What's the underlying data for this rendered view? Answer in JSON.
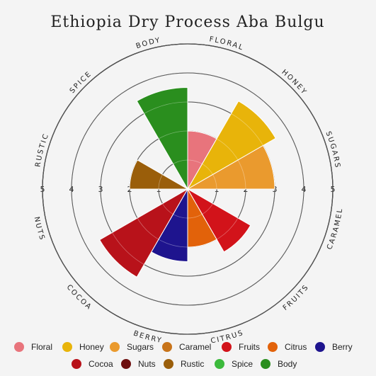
{
  "chart_data": {
    "type": "polar-area",
    "title": "Ethiopia Dry Process Aba Bulgu",
    "categories": [
      "Floral",
      "Honey",
      "Sugars",
      "Caramel",
      "Fruits",
      "Citrus",
      "Berry",
      "Cocoa",
      "Nuts",
      "Rustic",
      "Spice",
      "Body"
    ],
    "values": [
      2,
      3.5,
      3,
      0,
      2.5,
      2,
      2.5,
      3.5,
      0,
      2,
      0,
      3.5
    ],
    "colors": [
      "#e8747c",
      "#e8b40a",
      "#ea9a2e",
      "#c8741a",
      "#d2131a",
      "#e2620a",
      "#1e148e",
      "#b8121a",
      "#6e0f0f",
      "#9a5e0a",
      "#3cba3c",
      "#2a8e1e"
    ],
    "rlim": [
      0,
      5
    ],
    "radial_ticks": [
      "1",
      "2",
      "3",
      "4",
      "5"
    ],
    "circle_labels": [
      "FLORAL",
      "HONEY",
      "SUGARS",
      "CARAMEL",
      "FRUITS",
      "CITRUS",
      "BERRY",
      "COCOA",
      "NUTS",
      "RUSTIC",
      "SPICE",
      "BODY"
    ],
    "legend": [
      "Floral",
      "Honey",
      "Sugars",
      "Caramel",
      "Fruits",
      "Citrus",
      "Berry",
      "Cocoa",
      "Nuts",
      "Rustic",
      "Spice",
      "Body"
    ],
    "grid": true,
    "legend_position": "bottom"
  }
}
